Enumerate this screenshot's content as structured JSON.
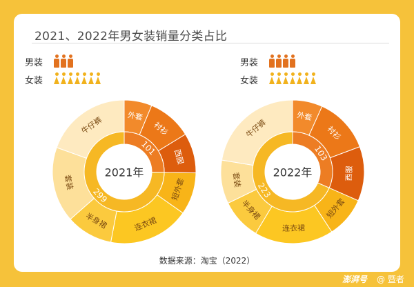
{
  "title": "2021、2022年男女装销量分类占比",
  "legend": {
    "male": {
      "label": "男装",
      "icon": "male-person-icon",
      "count_2021": 3,
      "count_2022": 4,
      "color": "#e2721f"
    },
    "female": {
      "label": "女装",
      "icon": "female-person-icon",
      "count_2021": 7,
      "count_2022": 7,
      "color": "#f1b21d"
    }
  },
  "source": "数据来源：淘宝（2022）",
  "footer": {
    "brand": "澎湃号",
    "author": "@ 暨者"
  },
  "chart_data": [
    {
      "type": "sunburst",
      "center_label": "2021年",
      "inner_ring": [
        {
          "label": "101",
          "group": "男装",
          "weight": 101
        },
        {
          "label": "299",
          "group": "女装",
          "weight": 299
        }
      ],
      "outer_ring": [
        {
          "label": "外套",
          "group": "男装",
          "weight": 25,
          "color": "#f28a2b"
        },
        {
          "label": "衬衫",
          "group": "男装",
          "weight": 40,
          "color": "#ec7818"
        },
        {
          "label": "西服",
          "group": "男装",
          "weight": 36,
          "color": "#dd5d0d"
        },
        {
          "label": "短外套",
          "group": "女装",
          "weight": 38,
          "color": "#f8b418"
        },
        {
          "label": "连衣裙",
          "group": "女装",
          "weight": 73,
          "color": "#fcc722"
        },
        {
          "label": "半身裙",
          "group": "女装",
          "weight": 42,
          "color": "#fbca3e"
        },
        {
          "label": "套装",
          "group": "女装",
          "weight": 68,
          "color": "#fde09a"
        },
        {
          "label": "牛仔裤",
          "group": "女装",
          "weight": 78,
          "color": "#feeac0"
        }
      ]
    },
    {
      "type": "sunburst",
      "center_label": "2022年",
      "inner_ring": [
        {
          "label": "103",
          "group": "男装",
          "weight": 103
        },
        {
          "label": "223",
          "group": "女装",
          "weight": 223
        }
      ],
      "outer_ring": [
        {
          "label": "外套",
          "group": "男装",
          "weight": 22,
          "color": "#f28a2b"
        },
        {
          "label": "衬衫",
          "group": "男装",
          "weight": 41,
          "color": "#ec7818"
        },
        {
          "label": "西服",
          "group": "男装",
          "weight": 40,
          "color": "#dd5d0d"
        },
        {
          "label": "短外套",
          "group": "女装",
          "weight": 30,
          "color": "#f8b418"
        },
        {
          "label": "连衣裙",
          "group": "女装",
          "weight": 58,
          "color": "#fcc722"
        },
        {
          "label": "半身裙",
          "group": "女装",
          "weight": 30,
          "color": "#fbca3e"
        },
        {
          "label": "套装",
          "group": "女装",
          "weight": 32,
          "color": "#fde09a"
        },
        {
          "label": "牛仔裤",
          "group": "女装",
          "weight": 73,
          "color": "#feeac0"
        }
      ]
    }
  ]
}
